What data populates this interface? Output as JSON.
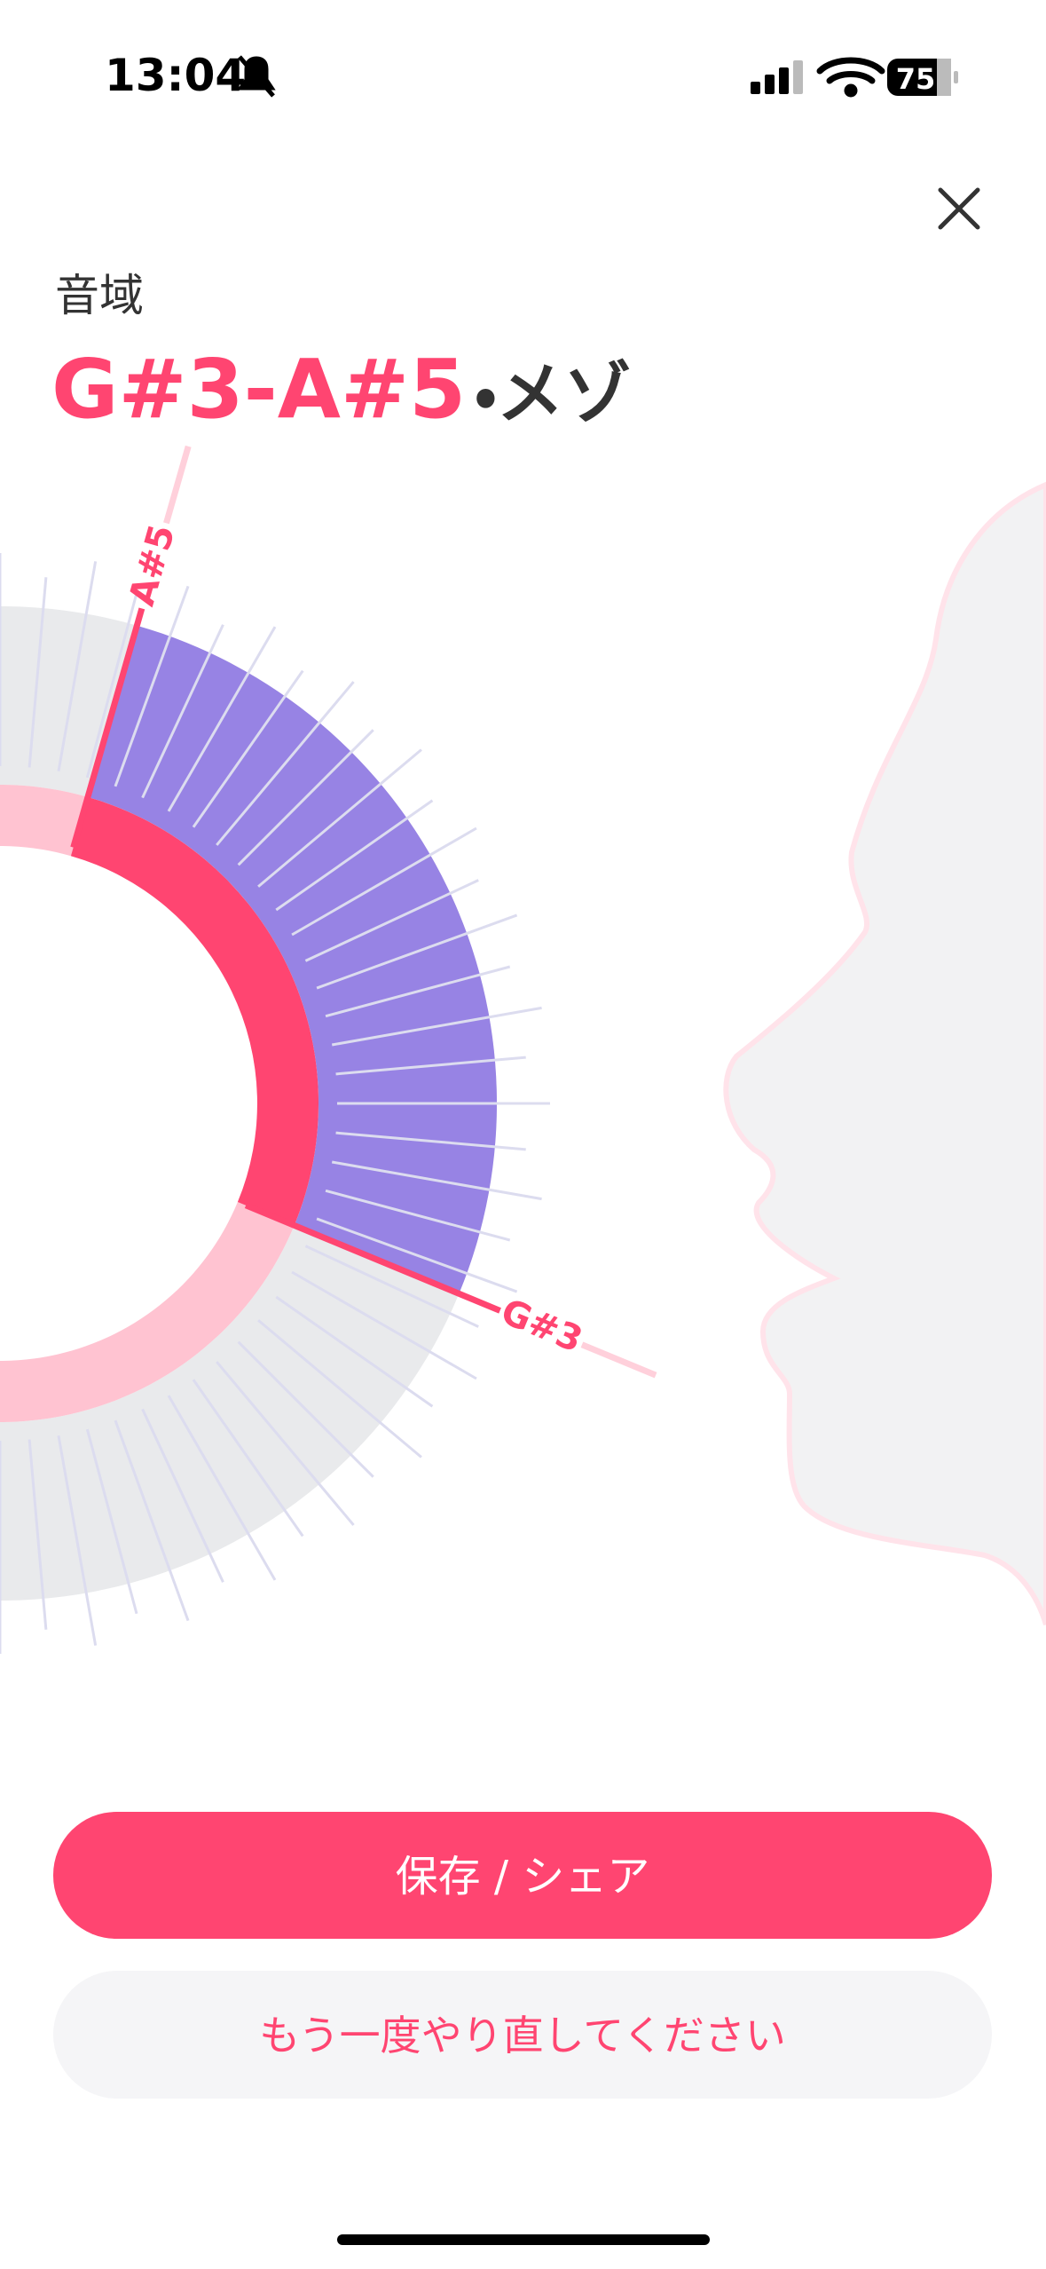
{
  "status_bar": {
    "time": "13:04",
    "battery": "75"
  },
  "header": {
    "label": "音域",
    "range": "G#3-A#5",
    "separator": "・",
    "voice_type": "メゾ"
  },
  "chart": {
    "upper_note": "A#5",
    "lower_note": "G#3"
  },
  "buttons": {
    "save_share": "保存 / シェア",
    "retry": "もう一度やり直してください"
  }
}
